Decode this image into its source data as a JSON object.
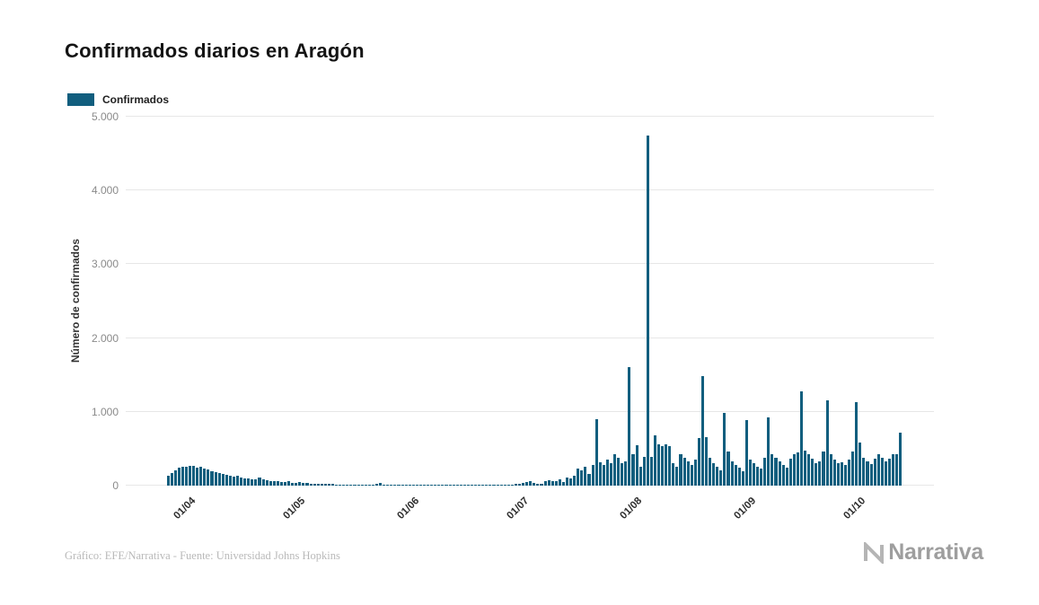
{
  "page": {
    "title": "Confirmados diarios en Aragón",
    "source_note": "Gráfico: EFE/Narrativa - Fuente: Universidad Johns Hopkins",
    "brand": "Narrativa"
  },
  "legend": {
    "label": "Confirmados",
    "color": "#115e7e"
  },
  "chart_data": {
    "type": "bar",
    "title": "Confirmados diarios en Aragón",
    "ylabel": "Número de confirmados",
    "xlabel": "",
    "ylim": [
      0,
      5000
    ],
    "grid": "horizontal",
    "legend_position": "top-left",
    "bar_color": "#115e7e",
    "yticks": [
      0,
      1000,
      2000,
      3000,
      4000,
      5000
    ],
    "ytick_labels": [
      "0",
      "1.000",
      "2.000",
      "3.000",
      "4.000",
      "5.000"
    ],
    "xtick_labels": [
      "01/04",
      "01/05",
      "01/06",
      "01/07",
      "01/08",
      "01/09",
      "01/10"
    ],
    "xtick_day_index": [
      6,
      36,
      67,
      97,
      128,
      159,
      189
    ],
    "values": [
      140,
      175,
      205,
      240,
      255,
      250,
      265,
      270,
      245,
      250,
      230,
      215,
      200,
      185,
      170,
      160,
      150,
      140,
      125,
      135,
      110,
      100,
      95,
      90,
      85,
      115,
      80,
      70,
      65,
      60,
      55,
      50,
      45,
      55,
      40,
      35,
      45,
      40,
      35,
      30,
      28,
      25,
      22,
      30,
      25,
      20,
      18,
      15,
      12,
      15,
      18,
      12,
      10,
      8,
      12,
      10,
      15,
      30,
      35,
      12,
      10,
      8,
      6,
      8,
      10,
      6,
      5,
      8,
      6,
      10,
      14,
      8,
      5,
      4,
      6,
      10,
      15,
      10,
      8,
      5,
      4,
      3,
      5,
      8,
      12,
      18,
      10,
      6,
      4,
      8,
      10,
      6,
      12,
      18,
      15,
      22,
      28,
      35,
      45,
      55,
      40,
      30,
      25,
      60,
      75,
      55,
      65,
      85,
      50,
      110,
      95,
      130,
      230,
      205,
      260,
      155,
      285,
      905,
      320,
      285,
      350,
      310,
      420,
      380,
      300,
      330,
      1610,
      430,
      545,
      260,
      385,
      4750,
      395,
      680,
      555,
      530,
      560,
      540,
      300,
      250,
      420,
      380,
      330,
      280,
      350,
      650,
      1490,
      660,
      380,
      300,
      250,
      210,
      990,
      460,
      330,
      280,
      240,
      200,
      890,
      350,
      300,
      260,
      230,
      380,
      920,
      430,
      380,
      330,
      280,
      240,
      360,
      420,
      450,
      1280,
      480,
      420,
      360,
      300,
      330,
      460,
      1160,
      420,
      350,
      300,
      320,
      280,
      350,
      460,
      1130,
      580,
      380,
      330,
      290,
      360,
      420,
      380,
      330,
      360,
      420,
      430,
      720
    ]
  }
}
